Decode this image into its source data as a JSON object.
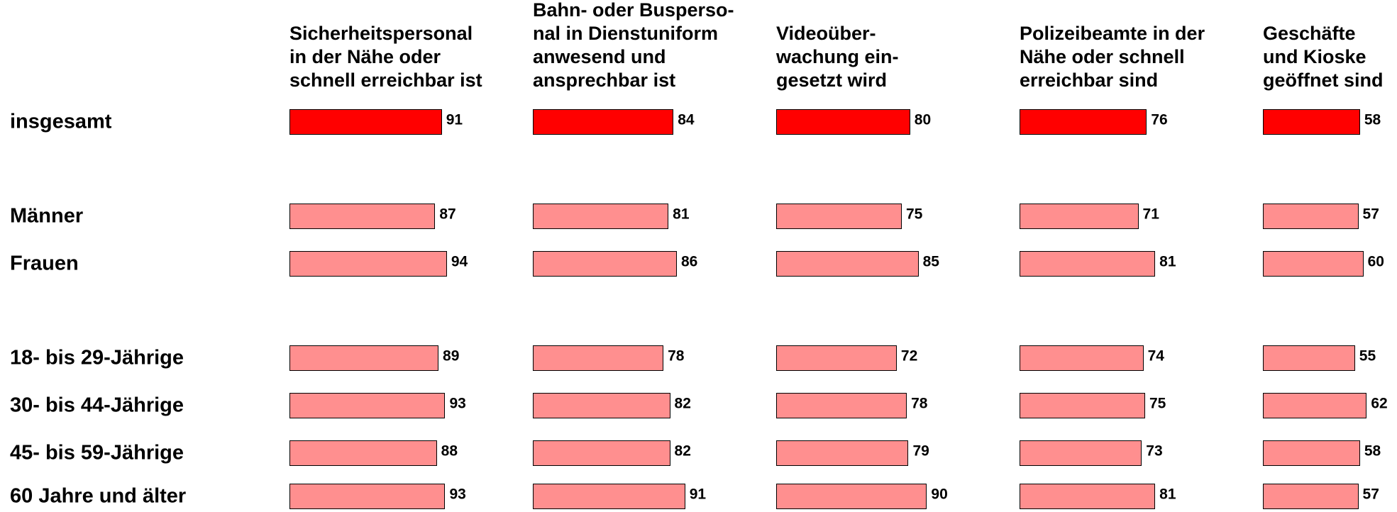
{
  "chart_data": {
    "type": "bar",
    "categories": [
      "insgesamt",
      "Männer",
      "Frauen",
      "18- bis 29-Jährige",
      "30- bis 44-Jährige",
      "45- bis 59-Jährige",
      "60 Jahre und älter"
    ],
    "bar_colors": [
      "#ff0000",
      "#ff8f8f",
      "#ff8f8f",
      "#ff8f8f",
      "#ff8f8f",
      "#ff8f8f",
      "#ff8f8f"
    ],
    "series": [
      {
        "name": "Sicherheitspersonal\nin der Nähe oder\nschnell erreichbar ist",
        "values": [
          91,
          87,
          94,
          89,
          93,
          88,
          93
        ]
      },
      {
        "name": "Bahn- oder Busperso-\nnal in Dienstuniform\nanwesend und\nansprechbar ist",
        "values": [
          84,
          81,
          86,
          78,
          82,
          82,
          91
        ]
      },
      {
        "name": "Videoüber-\nwachung ein-\ngesetzt wird",
        "values": [
          80,
          75,
          85,
          72,
          78,
          79,
          90
        ]
      },
      {
        "name": "Polizeibeamte in der\nNähe oder schnell\nerreichbar sind",
        "values": [
          76,
          71,
          81,
          74,
          75,
          73,
          81
        ]
      },
      {
        "name": "Geschäfte\nund Kioske\ngeöffnet sind",
        "values": [
          58,
          57,
          60,
          55,
          62,
          58,
          57
        ]
      }
    ]
  }
}
